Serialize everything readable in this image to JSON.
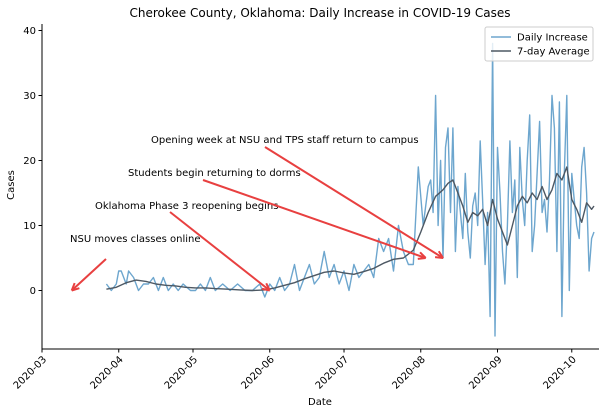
{
  "chart_data": {
    "type": "line",
    "title": "Cherokee County, Oklahoma: Daily Increase in COVID-19 Cases",
    "xlabel": "Date",
    "ylabel": "Cases",
    "xlim": [
      "2020-03-01",
      "2020-10-12"
    ],
    "ylim": [
      -9,
      41
    ],
    "x_ticks": [
      "2020-03",
      "2020-04",
      "2020-05",
      "2020-06",
      "2020-07",
      "2020-08",
      "2020-09",
      "2020-10"
    ],
    "y_ticks": [
      0,
      10,
      20,
      30,
      40
    ],
    "grid": false,
    "legend_position": "top-right",
    "colors": {
      "daily": "#1f77b4",
      "avg": "#4d5863",
      "arrow": "#e84040"
    },
    "series": [
      {
        "name": "Daily Increase",
        "points": [
          [
            "2020-03-27",
            1
          ],
          [
            "2020-03-29",
            0
          ],
          [
            "2020-03-31",
            1
          ],
          [
            "2020-04-01",
            3
          ],
          [
            "2020-04-02",
            3
          ],
          [
            "2020-04-04",
            1
          ],
          [
            "2020-04-05",
            3
          ],
          [
            "2020-04-07",
            2
          ],
          [
            "2020-04-09",
            0
          ],
          [
            "2020-04-11",
            1
          ],
          [
            "2020-04-13",
            1
          ],
          [
            "2020-04-15",
            2
          ],
          [
            "2020-04-17",
            0
          ],
          [
            "2020-04-19",
            2
          ],
          [
            "2020-04-21",
            0
          ],
          [
            "2020-04-23",
            1
          ],
          [
            "2020-04-25",
            0
          ],
          [
            "2020-04-27",
            1
          ],
          [
            "2020-04-30",
            0
          ],
          [
            "2020-05-02",
            0
          ],
          [
            "2020-05-04",
            1
          ],
          [
            "2020-05-06",
            0
          ],
          [
            "2020-05-08",
            2
          ],
          [
            "2020-05-10",
            0
          ],
          [
            "2020-05-13",
            1
          ],
          [
            "2020-05-16",
            0
          ],
          [
            "2020-05-19",
            1
          ],
          [
            "2020-05-22",
            0
          ],
          [
            "2020-05-25",
            0
          ],
          [
            "2020-05-28",
            1
          ],
          [
            "2020-05-30",
            -1
          ],
          [
            "2020-06-01",
            1
          ],
          [
            "2020-06-03",
            0
          ],
          [
            "2020-06-05",
            2
          ],
          [
            "2020-06-07",
            0
          ],
          [
            "2020-06-09",
            1
          ],
          [
            "2020-06-11",
            4
          ],
          [
            "2020-06-13",
            0
          ],
          [
            "2020-06-15",
            2
          ],
          [
            "2020-06-17",
            4
          ],
          [
            "2020-06-19",
            1
          ],
          [
            "2020-06-21",
            2
          ],
          [
            "2020-06-23",
            6
          ],
          [
            "2020-06-25",
            2
          ],
          [
            "2020-06-27",
            4
          ],
          [
            "2020-06-29",
            1
          ],
          [
            "2020-07-01",
            3
          ],
          [
            "2020-07-03",
            0
          ],
          [
            "2020-07-05",
            4
          ],
          [
            "2020-07-07",
            2
          ],
          [
            "2020-07-09",
            3
          ],
          [
            "2020-07-11",
            4
          ],
          [
            "2020-07-13",
            2
          ],
          [
            "2020-07-15",
            8
          ],
          [
            "2020-07-17",
            6
          ],
          [
            "2020-07-19",
            8
          ],
          [
            "2020-07-21",
            3
          ],
          [
            "2020-07-23",
            10
          ],
          [
            "2020-07-25",
            6
          ],
          [
            "2020-07-27",
            4
          ],
          [
            "2020-07-29",
            4
          ],
          [
            "2020-07-31",
            19
          ],
          [
            "2020-08-02",
            10
          ],
          [
            "2020-08-04",
            16
          ],
          [
            "2020-08-05",
            17
          ],
          [
            "2020-08-06",
            12
          ],
          [
            "2020-08-07",
            30
          ],
          [
            "2020-08-08",
            10
          ],
          [
            "2020-08-09",
            20
          ],
          [
            "2020-08-10",
            5
          ],
          [
            "2020-08-11",
            22
          ],
          [
            "2020-08-12",
            25
          ],
          [
            "2020-08-13",
            12
          ],
          [
            "2020-08-14",
            25
          ],
          [
            "2020-08-15",
            6
          ],
          [
            "2020-08-16",
            16
          ],
          [
            "2020-08-17",
            12
          ],
          [
            "2020-08-18",
            8
          ],
          [
            "2020-08-19",
            18
          ],
          [
            "2020-08-20",
            9
          ],
          [
            "2020-08-21",
            5
          ],
          [
            "2020-08-22",
            13
          ],
          [
            "2020-08-23",
            15
          ],
          [
            "2020-08-24",
            10
          ],
          [
            "2020-08-25",
            23
          ],
          [
            "2020-08-26",
            14
          ],
          [
            "2020-08-27",
            4
          ],
          [
            "2020-08-28",
            12
          ],
          [
            "2020-08-29",
            -4
          ],
          [
            "2020-08-30",
            38
          ],
          [
            "2020-08-31",
            -7
          ],
          [
            "2020-09-01",
            22
          ],
          [
            "2020-09-02",
            15
          ],
          [
            "2020-09-03",
            6
          ],
          [
            "2020-09-04",
            1
          ],
          [
            "2020-09-05",
            10
          ],
          [
            "2020-09-06",
            23
          ],
          [
            "2020-09-07",
            12
          ],
          [
            "2020-09-08",
            17
          ],
          [
            "2020-09-09",
            2
          ],
          [
            "2020-09-10",
            22
          ],
          [
            "2020-09-11",
            14
          ],
          [
            "2020-09-12",
            10
          ],
          [
            "2020-09-13",
            20
          ],
          [
            "2020-09-14",
            27
          ],
          [
            "2020-09-15",
            6
          ],
          [
            "2020-09-16",
            10
          ],
          [
            "2020-09-17",
            18
          ],
          [
            "2020-09-18",
            26
          ],
          [
            "2020-09-19",
            12
          ],
          [
            "2020-09-20",
            14
          ],
          [
            "2020-09-21",
            9
          ],
          [
            "2020-09-22",
            17
          ],
          [
            "2020-09-23",
            30
          ],
          [
            "2020-09-24",
            25
          ],
          [
            "2020-09-25",
            6
          ],
          [
            "2020-09-26",
            29
          ],
          [
            "2020-09-27",
            -4
          ],
          [
            "2020-09-28",
            18
          ],
          [
            "2020-09-29",
            30
          ],
          [
            "2020-09-30",
            0
          ],
          [
            "2020-10-01",
            18
          ],
          [
            "2020-10-02",
            14
          ],
          [
            "2020-10-03",
            10
          ],
          [
            "2020-10-04",
            8
          ],
          [
            "2020-10-05",
            19
          ],
          [
            "2020-10-06",
            22
          ],
          [
            "2020-10-07",
            15
          ],
          [
            "2020-10-08",
            3
          ],
          [
            "2020-10-09",
            8
          ],
          [
            "2020-10-10",
            9
          ]
        ]
      },
      {
        "name": "7-day Average",
        "points": [
          [
            "2020-03-27",
            0.2
          ],
          [
            "2020-03-31",
            0.5
          ],
          [
            "2020-04-04",
            1.2
          ],
          [
            "2020-04-08",
            1.6
          ],
          [
            "2020-04-12",
            1.4
          ],
          [
            "2020-04-16",
            1.0
          ],
          [
            "2020-04-20",
            0.8
          ],
          [
            "2020-04-24",
            0.7
          ],
          [
            "2020-04-28",
            0.5
          ],
          [
            "2020-05-02",
            0.4
          ],
          [
            "2020-05-06",
            0.4
          ],
          [
            "2020-05-10",
            0.3
          ],
          [
            "2020-05-15",
            0.2
          ],
          [
            "2020-05-20",
            0.1
          ],
          [
            "2020-05-25",
            0.0
          ],
          [
            "2020-05-30",
            0.1
          ],
          [
            "2020-06-03",
            0.4
          ],
          [
            "2020-06-07",
            0.8
          ],
          [
            "2020-06-11",
            1.2
          ],
          [
            "2020-06-15",
            1.8
          ],
          [
            "2020-06-19",
            2.3
          ],
          [
            "2020-06-23",
            2.8
          ],
          [
            "2020-06-27",
            3.0
          ],
          [
            "2020-07-01",
            2.7
          ],
          [
            "2020-07-05",
            2.5
          ],
          [
            "2020-07-09",
            2.9
          ],
          [
            "2020-07-13",
            3.4
          ],
          [
            "2020-07-17",
            4.2
          ],
          [
            "2020-07-21",
            4.8
          ],
          [
            "2020-07-25",
            5.0
          ],
          [
            "2020-07-29",
            6.2
          ],
          [
            "2020-08-01",
            9.0
          ],
          [
            "2020-08-04",
            12.0
          ],
          [
            "2020-08-07",
            14.5
          ],
          [
            "2020-08-10",
            15.5
          ],
          [
            "2020-08-12",
            16.5
          ],
          [
            "2020-08-14",
            17.0
          ],
          [
            "2020-08-16",
            15.0
          ],
          [
            "2020-08-18",
            13.0
          ],
          [
            "2020-08-20",
            10.5
          ],
          [
            "2020-08-22",
            12.0
          ],
          [
            "2020-08-24",
            11.5
          ],
          [
            "2020-08-26",
            12.5
          ],
          [
            "2020-08-28",
            10.0
          ],
          [
            "2020-08-30",
            14.0
          ],
          [
            "2020-09-01",
            11.0
          ],
          [
            "2020-09-03",
            9.0
          ],
          [
            "2020-09-05",
            7.0
          ],
          [
            "2020-09-07",
            10.0
          ],
          [
            "2020-09-09",
            13.0
          ],
          [
            "2020-09-11",
            14.5
          ],
          [
            "2020-09-13",
            13.5
          ],
          [
            "2020-09-15",
            15.0
          ],
          [
            "2020-09-17",
            14.0
          ],
          [
            "2020-09-19",
            16.0
          ],
          [
            "2020-09-21",
            14.0
          ],
          [
            "2020-09-23",
            15.5
          ],
          [
            "2020-09-25",
            18.0
          ],
          [
            "2020-09-27",
            17.0
          ],
          [
            "2020-09-29",
            19.0
          ],
          [
            "2020-10-01",
            14.0
          ],
          [
            "2020-10-03",
            12.5
          ],
          [
            "2020-10-05",
            10.5
          ],
          [
            "2020-10-07",
            13.5
          ],
          [
            "2020-10-09",
            12.5
          ],
          [
            "2020-10-10",
            13.0
          ]
        ]
      }
    ],
    "annotations": [
      {
        "text": "NSU moves classes online",
        "points_to": [
          "2020-03-13",
          0
        ]
      },
      {
        "text": "Oklahoma Phase 3 reopening begins",
        "points_to": [
          "2020-06-01",
          0
        ]
      },
      {
        "text": "Students begin returning to dorms",
        "points_to": [
          "2020-08-03",
          5
        ]
      },
      {
        "text": "Opening week at NSU and TPS staff return to campus",
        "points_to": [
          "2020-08-10",
          5
        ]
      }
    ]
  }
}
